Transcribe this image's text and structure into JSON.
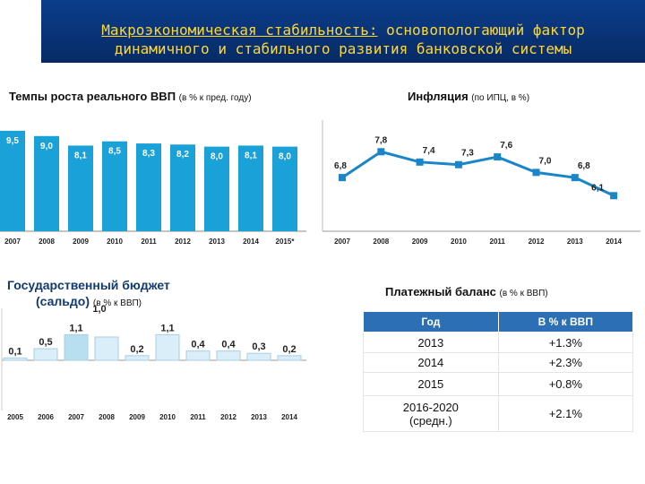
{
  "header": {
    "title_part1": "Макроэкономическая стабильность:",
    "title_part2": "основопологающий фактор",
    "title_line2": "динамичного и стабильного развития банковской системы"
  },
  "colors": {
    "banner": "#0b3e8a",
    "title": "#fdd835",
    "bar": "#1aa1d8",
    "line": "#1a86c9",
    "table_header": "#2c6fb4"
  },
  "charts": {
    "gdp": {
      "title": "Темпы роста реального ВВП",
      "subtitle": "(в % к пред. году)"
    },
    "inflation": {
      "title": "Инфляция",
      "subtitle": "(по ИПЦ, в %)"
    },
    "budget": {
      "title_line1": "Государственный бюджет",
      "title_line2": "(сальдо)",
      "subtitle": "(в % к ВВП)"
    }
  },
  "chart_data": [
    {
      "type": "bar",
      "title": "Темпы роста реального ВВП (в % к пред. году)",
      "categories": [
        "2007",
        "2008",
        "2009",
        "2010",
        "2011",
        "2012",
        "2013",
        "2014",
        "2015*"
      ],
      "values": [
        9.5,
        9.0,
        8.1,
        8.5,
        8.3,
        8.2,
        8.0,
        8.1,
        8.0
      ],
      "labels": [
        "9,5",
        "9,0",
        "8,1",
        "8,5",
        "8,3",
        "8,2",
        "8,0",
        "8,1",
        "8,0"
      ],
      "ylim": [
        0,
        10
      ]
    },
    {
      "type": "line",
      "title": "Инфляция (по ИПЦ, в %)",
      "categories": [
        "2007",
        "2008",
        "2009",
        "2010",
        "2011",
        "2012",
        "2013",
        "2014"
      ],
      "values": [
        6.8,
        7.8,
        7.4,
        7.3,
        7.6,
        7.0,
        6.8,
        6.1
      ],
      "labels": [
        "6,8",
        "7,8",
        "7,4",
        "7,3",
        "7,6",
        "7,0",
        "6,8",
        "6,1"
      ],
      "ylim": [
        0,
        10
      ]
    },
    {
      "type": "bar",
      "title": "Государственный бюджет (сальдо) (в % к ВВП)",
      "categories": [
        "2005",
        "2006",
        "2007",
        "2008",
        "2009",
        "2010",
        "2011",
        "2012",
        "2013",
        "2014"
      ],
      "values": [
        0.1,
        0.5,
        1.1,
        1.0,
        0.2,
        1.1,
        0.4,
        0.4,
        0.3,
        0.2
      ],
      "labels": [
        "0,1",
        "0,5",
        "1,1",
        "1,0",
        "0,2",
        "1,1",
        "0,4",
        "0,4",
        "0,3",
        "0,2"
      ],
      "ylim": [
        -1.2,
        1.3
      ]
    }
  ],
  "balance": {
    "title": "Платежный баланс",
    "subtitle": "(в % к ВВП)",
    "col_year": "Год",
    "col_value": "В % к ВВП",
    "rows": [
      {
        "year": "2013",
        "value": "+1.3%"
      },
      {
        "year": "2014",
        "value": "+2.3%"
      },
      {
        "year": "2015",
        "value": "+0.8%"
      },
      {
        "year_l1": "2016-2020",
        "year_l2": "(средн.)",
        "value": "+2.1%"
      }
    ]
  }
}
